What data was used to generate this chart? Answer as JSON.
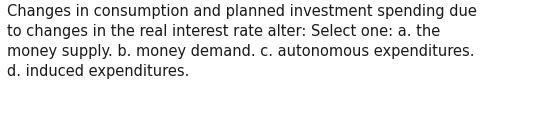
{
  "text": "Changes in consumption and planned investment spending due\nto changes in the real interest rate alter: Select one: a. the\nmoney supply. b. money demand. c. autonomous expenditures.\nd. induced expenditures.",
  "background_color": "#ffffff",
  "text_color": "#1a1a1a",
  "font_size": 10.5,
  "font_family": "DejaVu Sans"
}
